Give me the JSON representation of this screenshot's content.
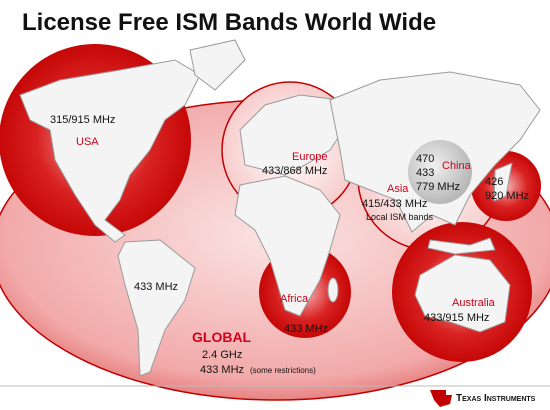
{
  "title": "License Free ISM Bands World Wide",
  "regions": {
    "usa": {
      "name": "USA",
      "bands": [
        "315/915 MHz"
      ]
    },
    "europe": {
      "name": "Europe",
      "bands": [
        "433/868 MHz"
      ]
    },
    "asia": {
      "name": "Asia",
      "bands": [
        "415/433 MHz",
        "Local ISM bands"
      ]
    },
    "china": {
      "name": "China",
      "bands": [
        "470",
        "433",
        "779 MHz"
      ]
    },
    "japan": {
      "bands": [
        "426",
        "920 MHz"
      ]
    },
    "south_america": {
      "bands": [
        "433 MHz"
      ]
    },
    "africa": {
      "name": "Africa",
      "bands": [
        "433 MHz"
      ]
    },
    "australia": {
      "name": "Australia",
      "bands": [
        "433/915 MHz"
      ]
    }
  },
  "global": {
    "name": "GLOBAL",
    "bands": [
      "2.4 GHz",
      "433 MHz"
    ],
    "note": "(some restrictions)"
  },
  "footer": {
    "brand": "Texas Instruments"
  }
}
